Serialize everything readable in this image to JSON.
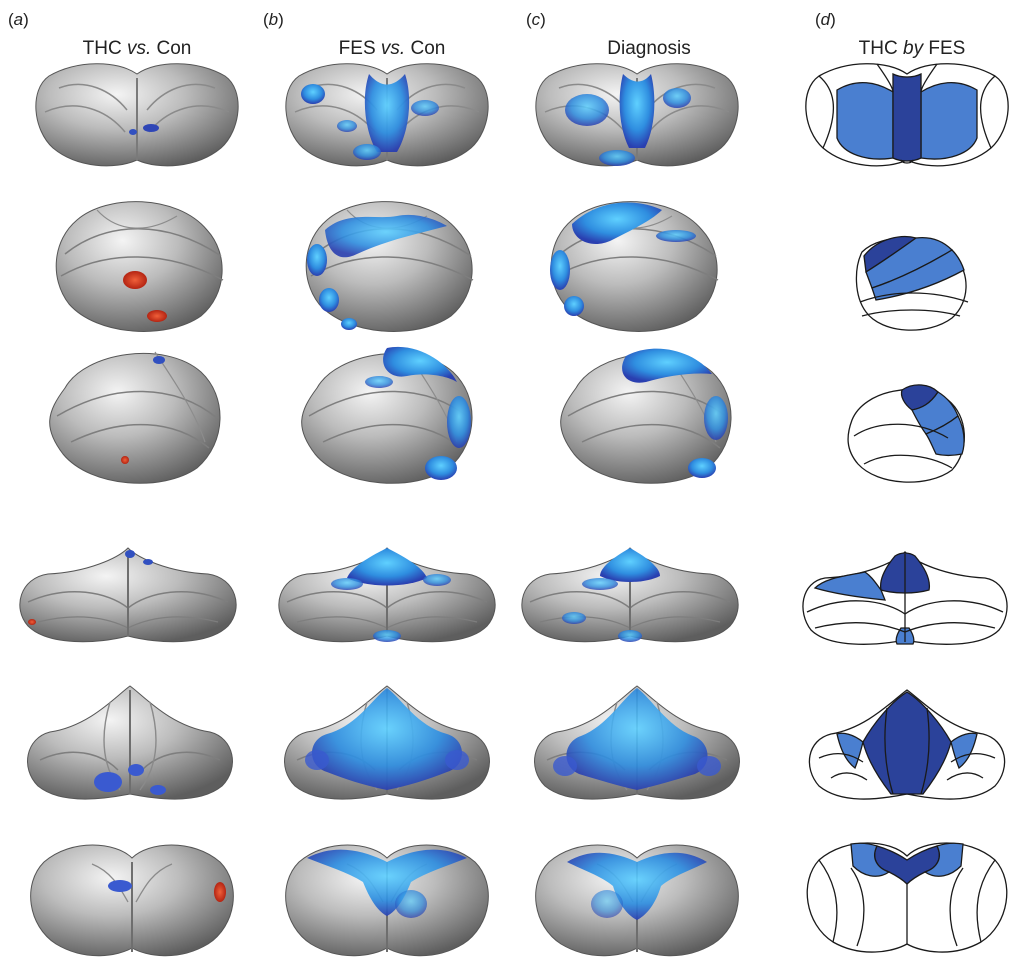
{
  "panels": [
    {
      "letter_pre": "(",
      "letter": "a",
      "letter_post": ")",
      "title_pre": "THC ",
      "title_em": "vs.",
      "title_post": " Con"
    },
    {
      "letter_pre": "(",
      "letter": "b",
      "letter_post": ")",
      "title_pre": "FES ",
      "title_em": "vs.",
      "title_post": " Con"
    },
    {
      "letter_pre": "(",
      "letter": "c",
      "letter_post": ")",
      "title_pre": "Diagnosis",
      "title_em": "",
      "title_post": ""
    },
    {
      "letter_pre": "(",
      "letter": "d",
      "letter_post": ")",
      "title_pre": "THC ",
      "title_em": "by",
      "title_post": " FES"
    }
  ],
  "colors": {
    "surface": "#b9b9b9",
    "surface_light": "#ececec",
    "surface_dark": "#6a6a6a",
    "blue_dark": "#2b3ea8",
    "blue_mid": "#3a78d8",
    "blue_light": "#38b4ee",
    "red": "#d8351e",
    "map_dark": "#2b429a",
    "map_mid": "#4a7fd0",
    "map_outline": "#1a1a1a"
  }
}
